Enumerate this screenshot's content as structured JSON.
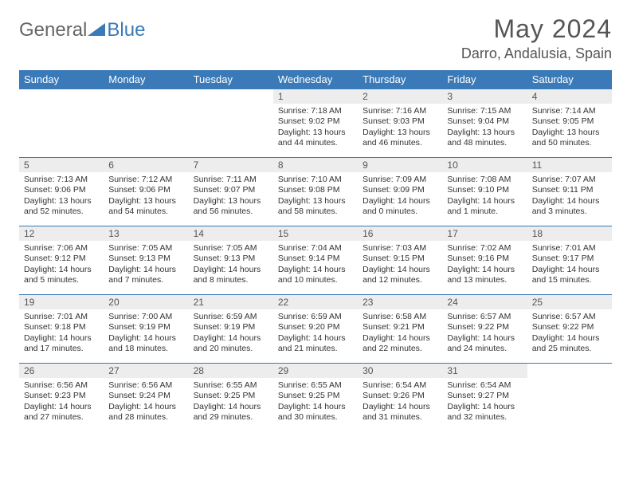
{
  "logo": {
    "textA": "General",
    "textB": "Blue",
    "triangle_color": "#3a7ab8"
  },
  "title": "May 2024",
  "location": "Darro, Andalusia, Spain",
  "colors": {
    "header_bg": "#3a7ab8",
    "header_text": "#ffffff",
    "daynum_bg": "#ededed",
    "border": "#3a7ab8",
    "body_text": "#333333",
    "title_text": "#555555"
  },
  "day_headers": [
    "Sunday",
    "Monday",
    "Tuesday",
    "Wednesday",
    "Thursday",
    "Friday",
    "Saturday"
  ],
  "weeks": [
    [
      {
        "n": "",
        "sunrise": "",
        "sunset": "",
        "day_h": "",
        "day_m": ""
      },
      {
        "n": "",
        "sunrise": "",
        "sunset": "",
        "day_h": "",
        "day_m": ""
      },
      {
        "n": "",
        "sunrise": "",
        "sunset": "",
        "day_h": "",
        "day_m": ""
      },
      {
        "n": "1",
        "sunrise": "7:18 AM",
        "sunset": "9:02 PM",
        "day_h": "13",
        "day_m": "44"
      },
      {
        "n": "2",
        "sunrise": "7:16 AM",
        "sunset": "9:03 PM",
        "day_h": "13",
        "day_m": "46"
      },
      {
        "n": "3",
        "sunrise": "7:15 AM",
        "sunset": "9:04 PM",
        "day_h": "13",
        "day_m": "48"
      },
      {
        "n": "4",
        "sunrise": "7:14 AM",
        "sunset": "9:05 PM",
        "day_h": "13",
        "day_m": "50"
      }
    ],
    [
      {
        "n": "5",
        "sunrise": "7:13 AM",
        "sunset": "9:06 PM",
        "day_h": "13",
        "day_m": "52"
      },
      {
        "n": "6",
        "sunrise": "7:12 AM",
        "sunset": "9:06 PM",
        "day_h": "13",
        "day_m": "54"
      },
      {
        "n": "7",
        "sunrise": "7:11 AM",
        "sunset": "9:07 PM",
        "day_h": "13",
        "day_m": "56"
      },
      {
        "n": "8",
        "sunrise": "7:10 AM",
        "sunset": "9:08 PM",
        "day_h": "13",
        "day_m": "58"
      },
      {
        "n": "9",
        "sunrise": "7:09 AM",
        "sunset": "9:09 PM",
        "day_h": "14",
        "day_m": "0"
      },
      {
        "n": "10",
        "sunrise": "7:08 AM",
        "sunset": "9:10 PM",
        "day_h": "14",
        "day_m": "1"
      },
      {
        "n": "11",
        "sunrise": "7:07 AM",
        "sunset": "9:11 PM",
        "day_h": "14",
        "day_m": "3"
      }
    ],
    [
      {
        "n": "12",
        "sunrise": "7:06 AM",
        "sunset": "9:12 PM",
        "day_h": "14",
        "day_m": "5"
      },
      {
        "n": "13",
        "sunrise": "7:05 AM",
        "sunset": "9:13 PM",
        "day_h": "14",
        "day_m": "7"
      },
      {
        "n": "14",
        "sunrise": "7:05 AM",
        "sunset": "9:13 PM",
        "day_h": "14",
        "day_m": "8"
      },
      {
        "n": "15",
        "sunrise": "7:04 AM",
        "sunset": "9:14 PM",
        "day_h": "14",
        "day_m": "10"
      },
      {
        "n": "16",
        "sunrise": "7:03 AM",
        "sunset": "9:15 PM",
        "day_h": "14",
        "day_m": "12"
      },
      {
        "n": "17",
        "sunrise": "7:02 AM",
        "sunset": "9:16 PM",
        "day_h": "14",
        "day_m": "13"
      },
      {
        "n": "18",
        "sunrise": "7:01 AM",
        "sunset": "9:17 PM",
        "day_h": "14",
        "day_m": "15"
      }
    ],
    [
      {
        "n": "19",
        "sunrise": "7:01 AM",
        "sunset": "9:18 PM",
        "day_h": "14",
        "day_m": "17"
      },
      {
        "n": "20",
        "sunrise": "7:00 AM",
        "sunset": "9:19 PM",
        "day_h": "14",
        "day_m": "18"
      },
      {
        "n": "21",
        "sunrise": "6:59 AM",
        "sunset": "9:19 PM",
        "day_h": "14",
        "day_m": "20"
      },
      {
        "n": "22",
        "sunrise": "6:59 AM",
        "sunset": "9:20 PM",
        "day_h": "14",
        "day_m": "21"
      },
      {
        "n": "23",
        "sunrise": "6:58 AM",
        "sunset": "9:21 PM",
        "day_h": "14",
        "day_m": "22"
      },
      {
        "n": "24",
        "sunrise": "6:57 AM",
        "sunset": "9:22 PM",
        "day_h": "14",
        "day_m": "24"
      },
      {
        "n": "25",
        "sunrise": "6:57 AM",
        "sunset": "9:22 PM",
        "day_h": "14",
        "day_m": "25"
      }
    ],
    [
      {
        "n": "26",
        "sunrise": "6:56 AM",
        "sunset": "9:23 PM",
        "day_h": "14",
        "day_m": "27"
      },
      {
        "n": "27",
        "sunrise": "6:56 AM",
        "sunset": "9:24 PM",
        "day_h": "14",
        "day_m": "28"
      },
      {
        "n": "28",
        "sunrise": "6:55 AM",
        "sunset": "9:25 PM",
        "day_h": "14",
        "day_m": "29"
      },
      {
        "n": "29",
        "sunrise": "6:55 AM",
        "sunset": "9:25 PM",
        "day_h": "14",
        "day_m": "30"
      },
      {
        "n": "30",
        "sunrise": "6:54 AM",
        "sunset": "9:26 PM",
        "day_h": "14",
        "day_m": "31"
      },
      {
        "n": "31",
        "sunrise": "6:54 AM",
        "sunset": "9:27 PM",
        "day_h": "14",
        "day_m": "32"
      },
      {
        "n": "",
        "sunrise": "",
        "sunset": "",
        "day_h": "",
        "day_m": ""
      }
    ]
  ],
  "labels": {
    "sunrise": "Sunrise:",
    "sunset": "Sunset:",
    "daylight": "Daylight:",
    "hours": "hours",
    "and": "and",
    "minute_singular": "minute.",
    "minutes": "minutes."
  }
}
